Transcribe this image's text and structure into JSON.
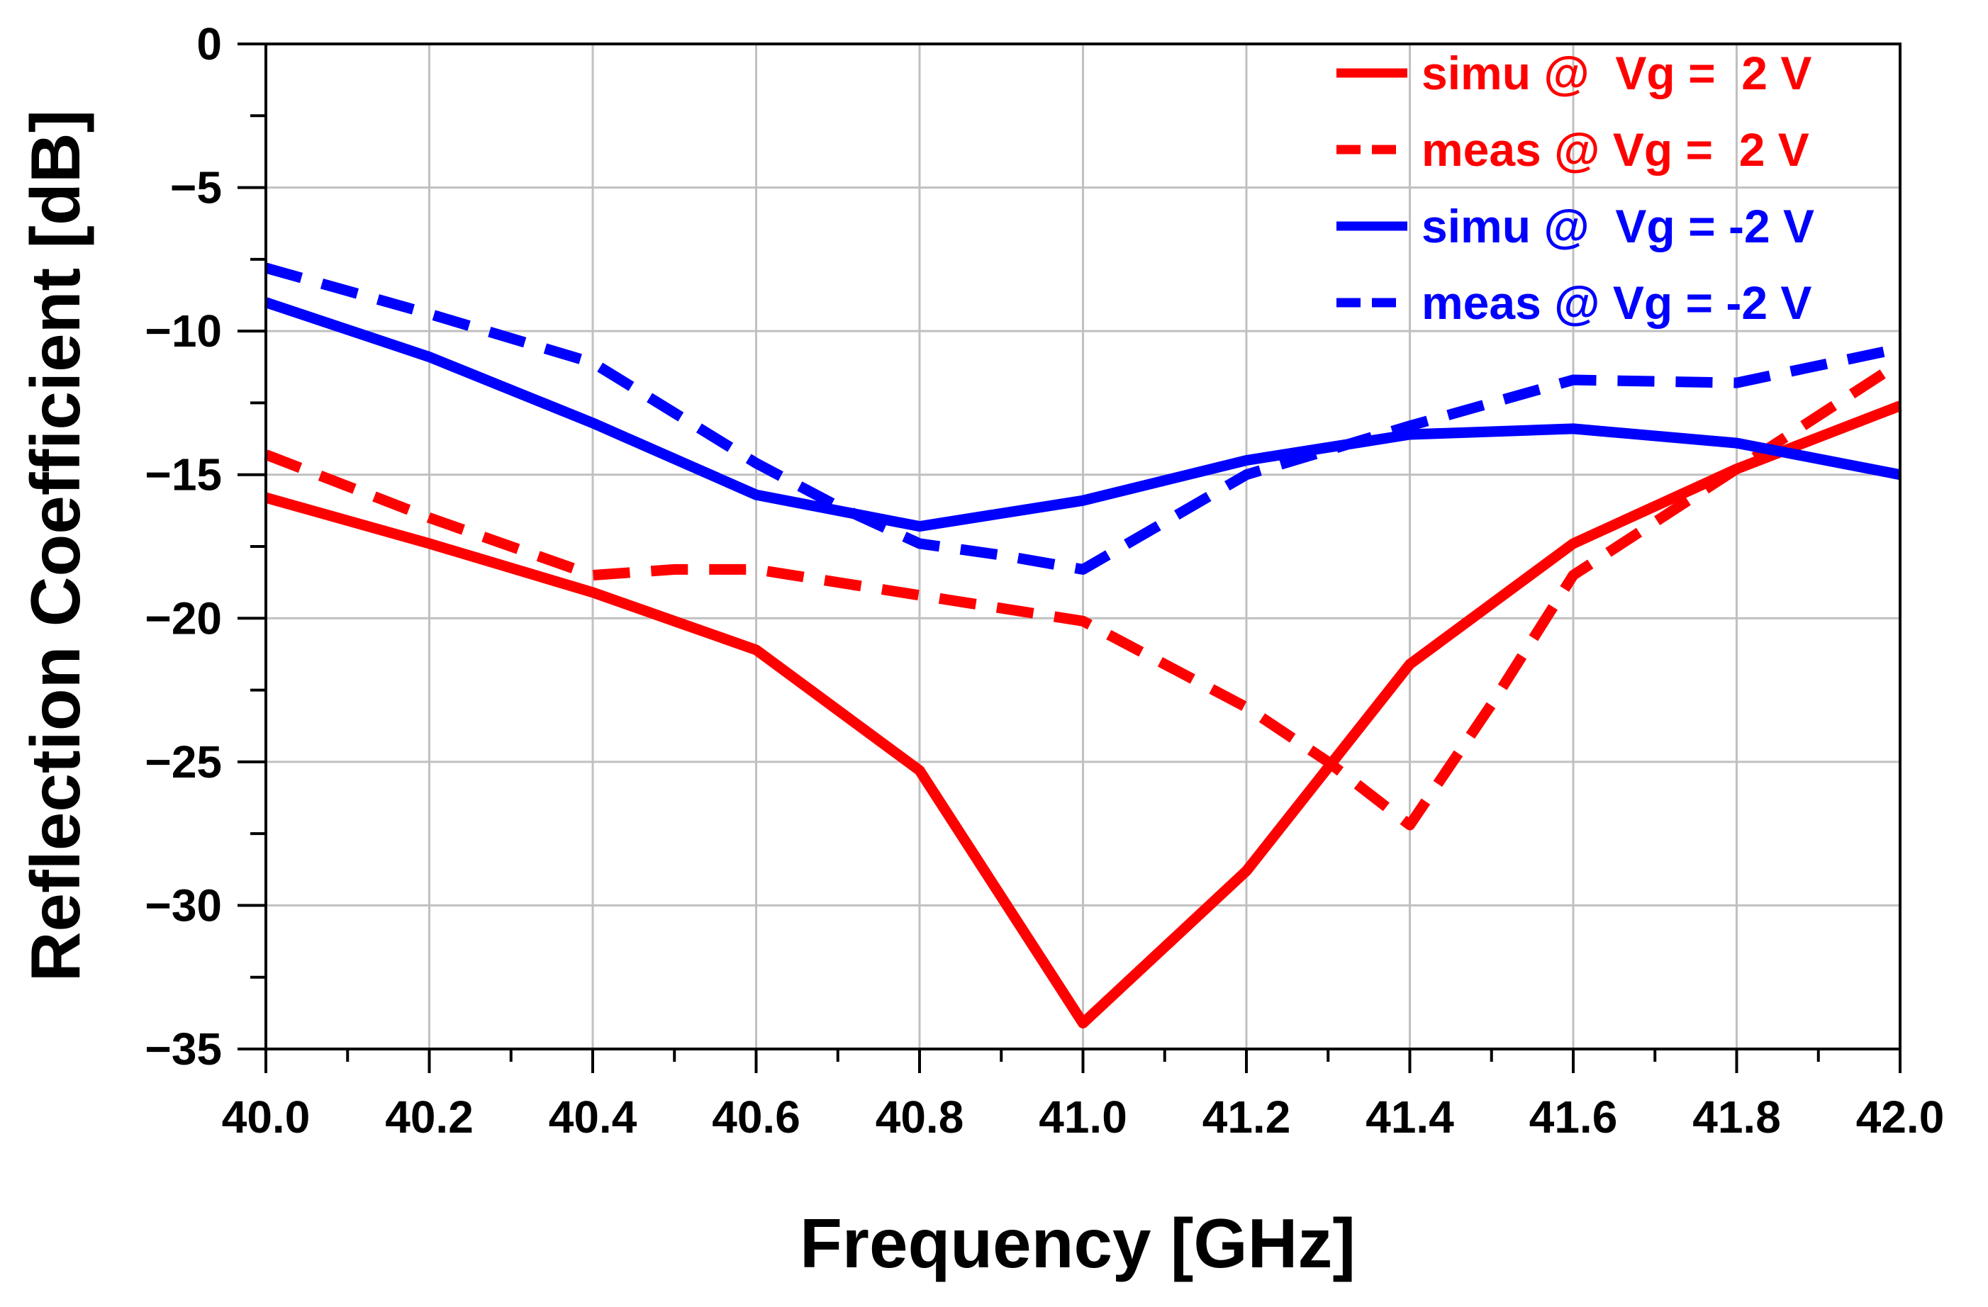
{
  "chart_data": {
    "type": "line",
    "title": "",
    "xlabel": "Frequency [GHz]",
    "ylabel": "Reflection Coefficient [dB]",
    "xlim": [
      40.0,
      42.0
    ],
    "ylim": [
      -35,
      0
    ],
    "x_ticks": [
      40.0,
      40.2,
      40.4,
      40.6,
      40.8,
      41.0,
      41.2,
      41.4,
      41.6,
      41.8,
      42.0
    ],
    "x_tick_labels": [
      "40.0",
      "40.2",
      "40.4",
      "40.6",
      "40.8",
      "41.0",
      "41.2",
      "41.4",
      "41.6",
      "41.8",
      "42.0"
    ],
    "y_ticks": [
      0,
      -5,
      -10,
      -15,
      -20,
      -25,
      -30,
      -35
    ],
    "y_tick_labels": [
      "0",
      "−5",
      "−10",
      "−15",
      "−20",
      "−25",
      "−30",
      "−35"
    ],
    "grid": true,
    "legend_position": "top-right",
    "series": [
      {
        "name": "simu @  Vg =  2 V",
        "color": "#ff0000",
        "style": "solid",
        "x": [
          40.0,
          40.2,
          40.4,
          40.6,
          40.8,
          41.0,
          41.2,
          41.4,
          41.6,
          41.8,
          42.0
        ],
        "y": [
          -15.8,
          -17.4,
          -19.1,
          -21.1,
          -25.3,
          -34.1,
          -28.8,
          -21.6,
          -17.4,
          -14.8,
          -12.6
        ]
      },
      {
        "name": "meas @ Vg =  2 V",
        "color": "#ff0000",
        "style": "dashed",
        "x": [
          40.0,
          40.2,
          40.4,
          40.5,
          40.6,
          40.8,
          41.0,
          41.2,
          41.3,
          41.4,
          41.5,
          41.6,
          41.8,
          42.0
        ],
        "y": [
          -14.3,
          -16.5,
          -18.5,
          -18.3,
          -18.3,
          -19.2,
          -20.1,
          -23.1,
          -25.0,
          -27.2,
          -23.0,
          -18.5,
          -14.8,
          -11.1
        ]
      },
      {
        "name": "simu @  Vg = -2 V",
        "color": "#0000ff",
        "style": "solid",
        "x": [
          40.0,
          40.2,
          40.4,
          40.6,
          40.8,
          41.0,
          41.2,
          41.4,
          41.6,
          41.8,
          42.0
        ],
        "y": [
          -9.0,
          -10.9,
          -13.2,
          -15.7,
          -16.8,
          -15.9,
          -14.5,
          -13.6,
          -13.4,
          -13.9,
          -15.0
        ]
      },
      {
        "name": "meas @ Vg = -2 V",
        "color": "#0000ff",
        "style": "dashed",
        "x": [
          40.0,
          40.2,
          40.4,
          40.6,
          40.7,
          40.8,
          40.9,
          41.0,
          41.2,
          41.4,
          41.6,
          41.8,
          42.0
        ],
        "y": [
          -7.8,
          -9.4,
          -11.1,
          -14.6,
          -16.1,
          -17.4,
          -17.8,
          -18.3,
          -15.0,
          -13.3,
          -11.7,
          -11.8,
          -10.6
        ]
      }
    ]
  }
}
